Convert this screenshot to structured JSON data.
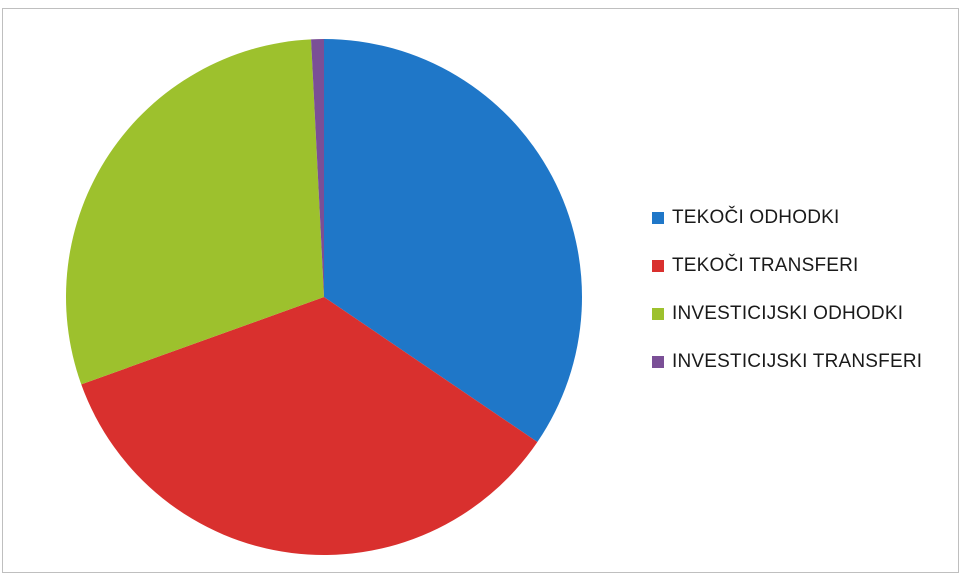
{
  "chart_data": {
    "type": "pie",
    "categories": [
      "TEKOČI ODHODKI",
      "TEKOČI TRANSFERI",
      "INVESTICIJSKI ODHODKI",
      "INVESTICIJSKI TRANSFERI"
    ],
    "values": [
      34.5,
      35.0,
      29.7,
      0.8
    ],
    "colors": [
      "#1f77c8",
      "#d9302e",
      "#9dc12d",
      "#7a4f96"
    ],
    "legend_position": "right",
    "start_angle_deg": 0,
    "direction": "clockwise"
  }
}
